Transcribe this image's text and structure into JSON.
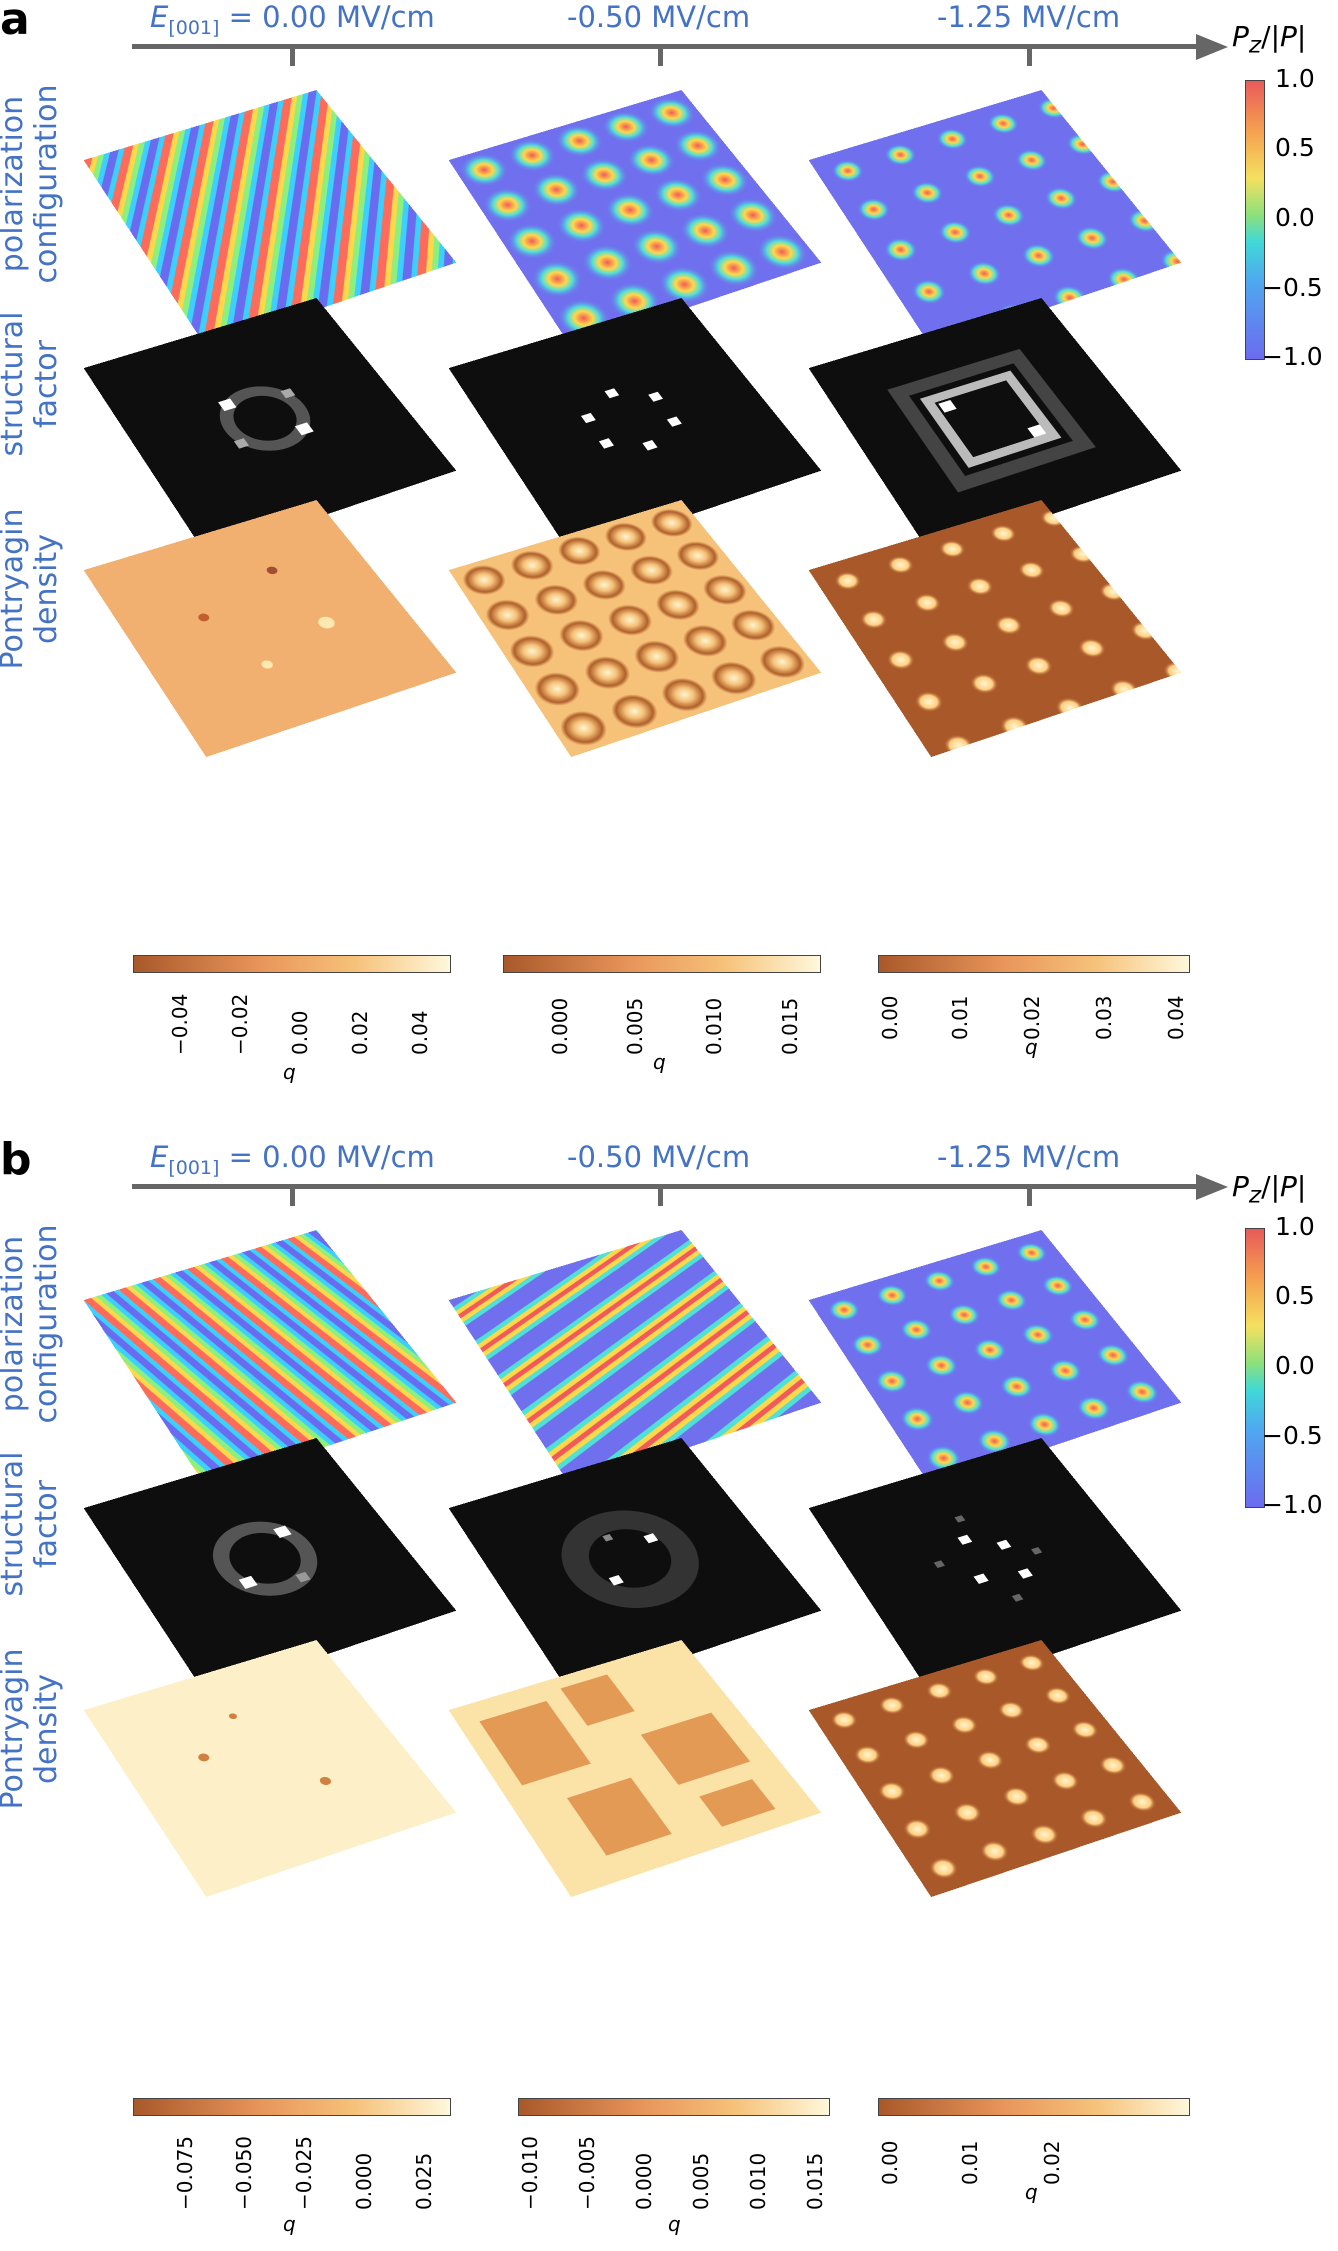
{
  "panels": [
    {
      "letter": "a",
      "field_prefix": "E",
      "field_sub": "[001]",
      "fields": [
        "= 0.00 MV/cm",
        "-0.50 MV/cm",
        "-1.25 MV/cm"
      ],
      "row_labels": [
        "polarization configuration",
        "structural factor",
        "Pontryagin density"
      ],
      "pz_title": "Pz/|P|",
      "pz_ticks": [
        "1.0",
        "0.5",
        "0.0",
        "−0.5",
        "−1.0"
      ],
      "q_label": "q",
      "q_colorbars": [
        {
          "ticks": [
            "−0.04",
            "−0.02",
            "0.00",
            "0.02",
            "0.04"
          ]
        },
        {
          "ticks": [
            "0.000",
            "0.005",
            "0.010",
            "0.015"
          ]
        },
        {
          "ticks": [
            "0.00",
            "0.01",
            "0.02",
            "0.03",
            "0.04"
          ]
        }
      ],
      "maps": {
        "polarization": [
          "labyrinth stripes",
          "skyrmion lattice",
          "isolated skyrmions"
        ],
        "structure": [
          "ring",
          "six spots",
          "square ring"
        ],
        "pontryagin": [
          "near-uniform",
          "hexagonal spots",
          "isolated bright spots"
        ]
      }
    },
    {
      "letter": "b",
      "field_prefix": "E",
      "field_sub": "[001]",
      "fields": [
        "= 0.00 MV/cm",
        "-0.50 MV/cm",
        "-1.25 MV/cm"
      ],
      "row_labels": [
        "polarization configuration",
        "structural factor",
        "Pontryagin density"
      ],
      "pz_title": "Pz/|P|",
      "pz_ticks": [
        "1.0",
        "0.5",
        "0.0",
        "−0.5",
        "−1.0"
      ],
      "q_label": "q",
      "q_colorbars": [
        {
          "ticks": [
            "−0.075",
            "−0.050",
            "−0.025",
            "0.000",
            "0.025"
          ]
        },
        {
          "ticks": [
            "−0.010",
            "−0.005",
            "0.000",
            "0.005",
            "0.010",
            "0.015"
          ]
        },
        {
          "ticks": [
            "0.00",
            "0.01",
            "0.02"
          ]
        }
      ],
      "maps": {
        "polarization": [
          "labyrinth stripes",
          "elongated domains",
          "isolated skyrmions"
        ],
        "structure": [
          "ring",
          "diffuse ring",
          "spot lattice"
        ],
        "pontryagin": [
          "near-uniform",
          "domain network",
          "isolated bright spots"
        ]
      }
    }
  ],
  "colors": {
    "label_blue": "#4472c4",
    "axis_gray": "#666666"
  }
}
